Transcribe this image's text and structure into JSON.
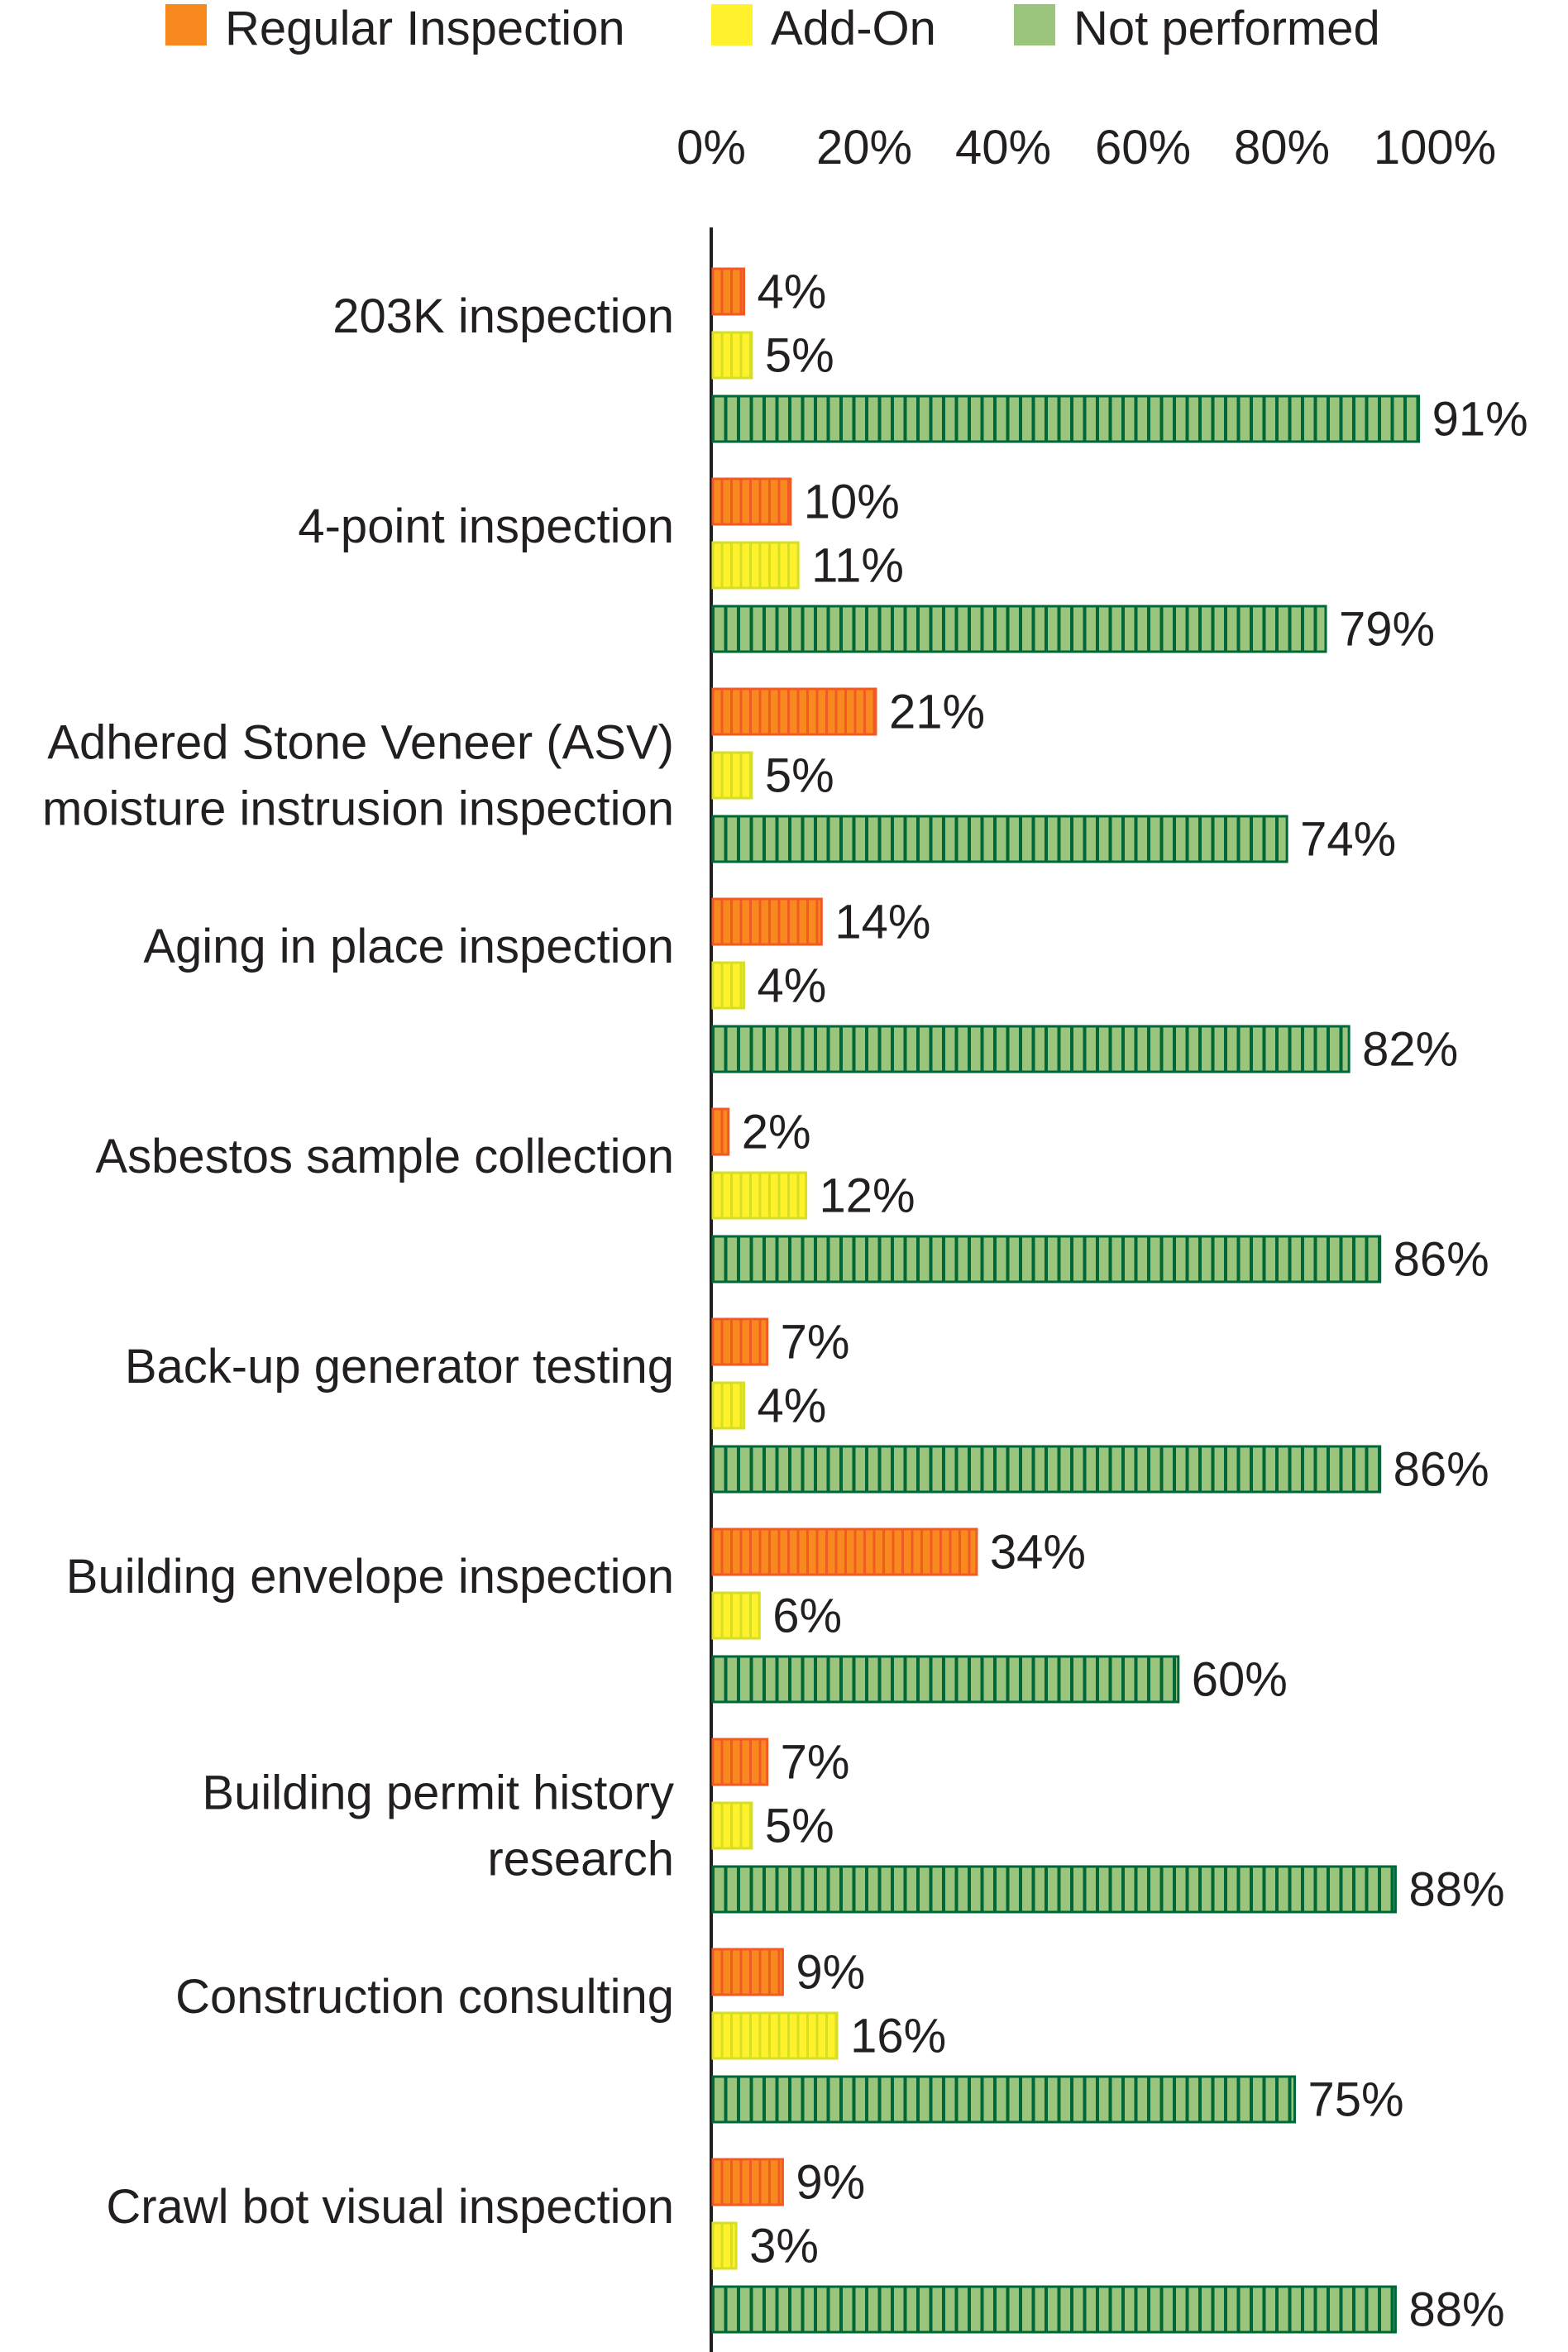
{
  "chart_data": {
    "type": "bar",
    "orientation": "horizontal",
    "title": "",
    "xlabel": "",
    "ylabel": "",
    "xlim": [
      0,
      100
    ],
    "grid": false,
    "legend_position": "top",
    "x_tick_labels": [
      "0%",
      "20%",
      "40%",
      "60%",
      "80%",
      "100%"
    ],
    "categories": [
      [
        "203K inspection"
      ],
      [
        "4-point inspection"
      ],
      [
        "Adhered Stone Veneer (ASV)",
        "moisture instrusion inspection"
      ],
      [
        "Aging in place inspection"
      ],
      [
        "Asbestos sample collection"
      ],
      [
        "Back-up generator testing"
      ],
      [
        "Building envelope inspection"
      ],
      [
        "Building permit history",
        "research"
      ],
      [
        "Construction consulting"
      ],
      [
        "Crawl bot visual inspection"
      ]
    ],
    "series": [
      {
        "name": "Regular Inspection",
        "color": "#f7891f",
        "stripe": "#f15a24",
        "values": [
          4,
          10,
          21,
          14,
          2,
          7,
          34,
          7,
          9,
          9
        ]
      },
      {
        "name": "Add-On",
        "color": "#fff22d",
        "stripe": "#d7df23",
        "values": [
          5,
          11,
          5,
          4,
          12,
          4,
          6,
          5,
          16,
          3
        ]
      },
      {
        "name": "Not performed",
        "color": "#9bc57c",
        "stripe": "#006838",
        "values": [
          91,
          79,
          74,
          82,
          86,
          86,
          60,
          88,
          75,
          88
        ]
      }
    ]
  }
}
